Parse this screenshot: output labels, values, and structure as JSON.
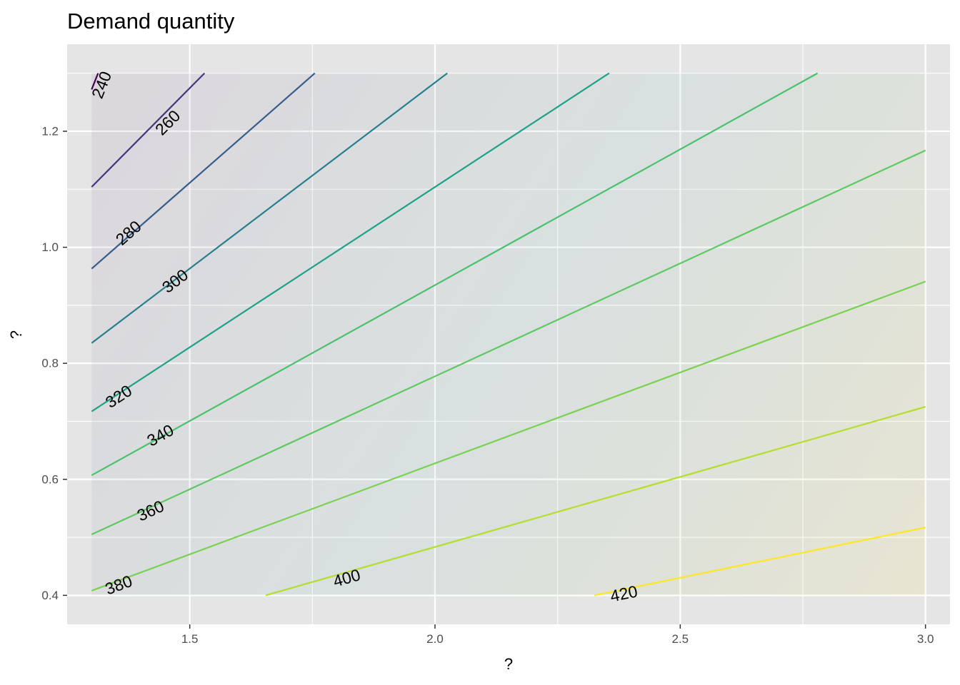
{
  "chart_data": {
    "type": "contour",
    "title": "Demand quantity",
    "xlabel": "?",
    "ylabel": "?",
    "xlim": [
      1.25,
      3.05
    ],
    "ylim": [
      0.35,
      1.35
    ],
    "x_ticks": [
      1.5,
      2.0,
      2.5,
      3.0
    ],
    "x_tick_labels": [
      "1.5",
      "2.0",
      "2.5",
      "3.0"
    ],
    "y_ticks": [
      0.4,
      0.6,
      0.8,
      1.0,
      1.2
    ],
    "y_tick_labels": [
      "0.4",
      "0.6",
      "0.8",
      "1.0",
      "1.2"
    ],
    "domain": {
      "x": [
        1.3,
        3.0
      ],
      "y": [
        0.4,
        1.3
      ]
    },
    "grid": true,
    "colors": {
      "panel_background": "#e5e5e5",
      "grid_major": "#ffffff",
      "fill_low": "#440154",
      "fill_high": "#fde725"
    },
    "contours": [
      {
        "level": 240,
        "label": "240",
        "color": "#440154",
        "points": [
          [
            1.3,
            1.272
          ],
          [
            1.313,
            1.3
          ]
        ]
      },
      {
        "level": 260,
        "label": "260",
        "color": "#46337e",
        "points": [
          [
            1.3,
            1.104
          ],
          [
            1.53,
            1.3
          ]
        ]
      },
      {
        "level": 280,
        "label": "280",
        "color": "#365c8d",
        "points": [
          [
            1.3,
            0.963
          ],
          [
            1.755,
            1.3
          ]
        ]
      },
      {
        "level": 300,
        "label": "300",
        "color": "#277f8e",
        "points": [
          [
            1.3,
            0.835
          ],
          [
            2.025,
            1.3
          ]
        ]
      },
      {
        "level": 320,
        "label": "320",
        "color": "#1fa187",
        "points": [
          [
            1.3,
            0.717
          ],
          [
            2.355,
            1.3
          ]
        ]
      },
      {
        "level": 340,
        "label": "340",
        "color": "#4ac16d",
        "points": [
          [
            1.3,
            0.607
          ],
          [
            2.78,
            1.3
          ]
        ]
      },
      {
        "level": 360,
        "label": "360",
        "color": "#5ec962",
        "points": [
          [
            1.3,
            0.505
          ],
          [
            3.0,
            1.167
          ]
        ]
      },
      {
        "level": 380,
        "label": "380",
        "color": "#7ad151",
        "points": [
          [
            1.3,
            0.408
          ],
          [
            3.0,
            0.941
          ]
        ]
      },
      {
        "level": 400,
        "label": "400",
        "color": "#b5de2b",
        "points": [
          [
            1.655,
            0.4
          ],
          [
            3.0,
            0.725
          ]
        ]
      },
      {
        "level": 420,
        "label": "420",
        "color": "#fde725",
        "points": [
          [
            2.325,
            0.4
          ],
          [
            3.0,
            0.517
          ]
        ]
      }
    ],
    "contour_labels": [
      {
        "text": "240",
        "x": 1.32,
        "y": 1.28
      },
      {
        "text": "260",
        "x": 1.455,
        "y": 1.215
      },
      {
        "text": "280",
        "x": 1.375,
        "y": 1.025
      },
      {
        "text": "300",
        "x": 1.47,
        "y": 0.942
      },
      {
        "text": "320",
        "x": 1.355,
        "y": 0.743
      },
      {
        "text": "340",
        "x": 1.44,
        "y": 0.676
      },
      {
        "text": "360",
        "x": 1.42,
        "y": 0.546
      },
      {
        "text": "380",
        "x": 1.355,
        "y": 0.418
      },
      {
        "text": "400",
        "x": 1.82,
        "y": 0.43
      },
      {
        "text": "420",
        "x": 2.385,
        "y": 0.403
      }
    ]
  }
}
